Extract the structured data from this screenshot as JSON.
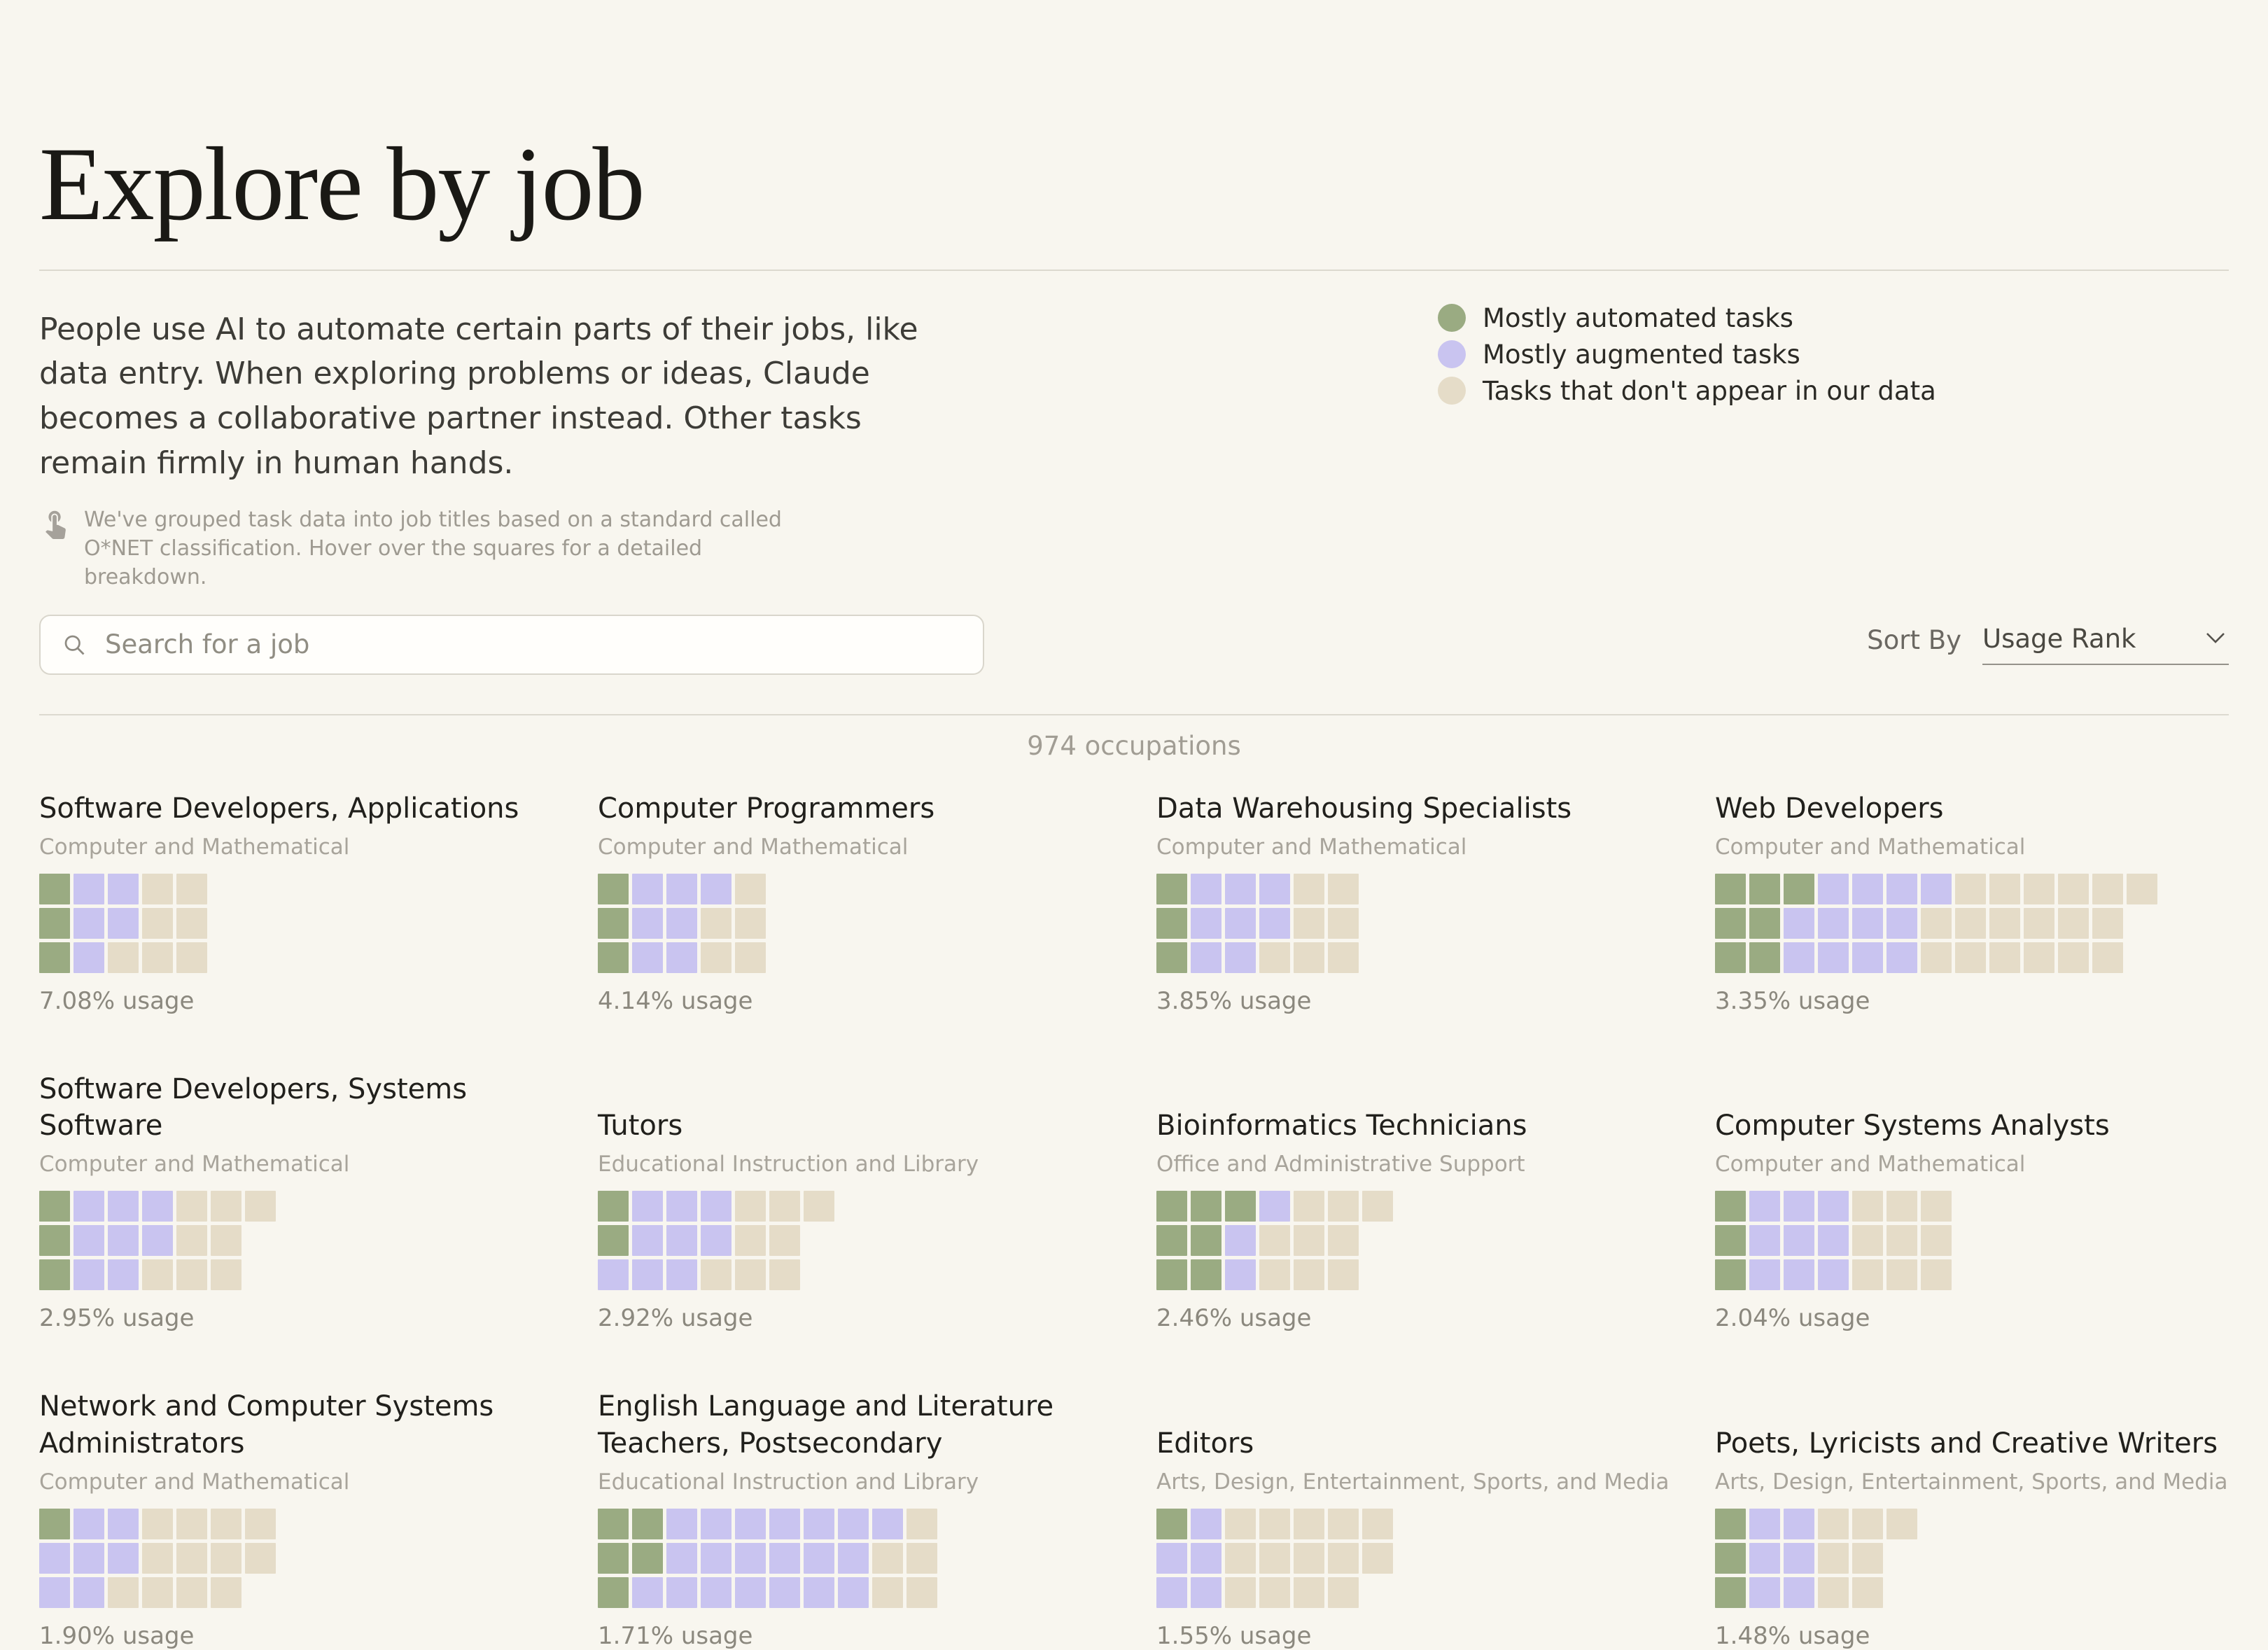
{
  "page": {
    "title": "Explore by job",
    "intro": "People use AI to automate certain parts of their jobs, like data entry. When exploring problems or ideas, Claude becomes a collaborative partner instead. Other tasks remain firmly in human hands.",
    "note": "We've grouped task data into job titles based on a standard called O*NET classification. Hover over the squares for a detailed breakdown.",
    "occupations_count": "974 occupations",
    "search_placeholder": "Search for a job",
    "sort_by_label": "Sort By",
    "sort_by_value": "Usage Rank"
  },
  "legend": {
    "items": [
      {
        "label": "Mostly automated tasks",
        "color_key": "automated"
      },
      {
        "label": "Mostly augmented tasks",
        "color_key": "augmented"
      },
      {
        "label": "Tasks that don't appear in our data",
        "color_key": "not_in_data"
      }
    ]
  },
  "chart_data": {
    "type": "heatmap",
    "subtype": "waffle-grid",
    "rows_per_grid": 3,
    "fill_order": "column-major-top-to-bottom",
    "unit": "occupation tasks",
    "colors": {
      "automated": "#9aab82",
      "augmented": "#c9c4f0",
      "not_in_data": "#e5dcc8",
      "background": "#f8f6ef"
    },
    "jobs": [
      {
        "title": "Software Developers, Applications",
        "category": "Computer and Mathematical",
        "usage": "7.08% usage",
        "tasks_total": 15,
        "tasks_automated": 3,
        "tasks_augmented": 5,
        "tasks_not_in_data": 7
      },
      {
        "title": "Computer Programmers",
        "category": "Computer and Mathematical",
        "usage": "4.14% usage",
        "tasks_total": 15,
        "tasks_automated": 3,
        "tasks_augmented": 7,
        "tasks_not_in_data": 5
      },
      {
        "title": "Data Warehousing Specialists",
        "category": "Computer and Mathematical",
        "usage": "3.85% usage",
        "tasks_total": 18,
        "tasks_automated": 3,
        "tasks_augmented": 8,
        "tasks_not_in_data": 7
      },
      {
        "title": "Web Developers",
        "category": "Computer and Mathematical",
        "usage": "3.35% usage",
        "tasks_total": 37,
        "tasks_automated": 7,
        "tasks_augmented": 12,
        "tasks_not_in_data": 18
      },
      {
        "title": "Software Developers, Systems Software",
        "category": "Computer and Mathematical",
        "usage": "2.95% usage",
        "tasks_total": 19,
        "tasks_automated": 3,
        "tasks_augmented": 8,
        "tasks_not_in_data": 8
      },
      {
        "title": "Tutors",
        "category": "Educational Instruction and Library",
        "usage": "2.92% usage",
        "tasks_total": 19,
        "tasks_automated": 2,
        "tasks_augmented": 9,
        "tasks_not_in_data": 8
      },
      {
        "title": "Bioinformatics Technicians",
        "category": "Office and Administrative Support",
        "usage": "2.46% usage",
        "tasks_total": 19,
        "tasks_automated": 7,
        "tasks_augmented": 3,
        "tasks_not_in_data": 9
      },
      {
        "title": "Computer Systems Analysts",
        "category": "Computer and Mathematical",
        "usage": "2.04% usage",
        "tasks_total": 21,
        "tasks_automated": 3,
        "tasks_augmented": 9,
        "tasks_not_in_data": 9
      },
      {
        "title": "Network and Computer Systems Administrators",
        "category": "Computer and Mathematical",
        "usage": "1.90% usage",
        "tasks_total": 20,
        "tasks_automated": 1,
        "tasks_augmented": 7,
        "tasks_not_in_data": 12
      },
      {
        "title": "English Language and Literature Teachers, Postsecondary",
        "category": "Educational Instruction and Library",
        "usage": "1.71% usage",
        "tasks_total": 30,
        "tasks_automated": 5,
        "tasks_augmented": 20,
        "tasks_not_in_data": 5
      },
      {
        "title": "Editors",
        "category": "Arts, Design, Entertainment, Sports, and Media",
        "usage": "1.55% usage",
        "tasks_total": 20,
        "tasks_automated": 1,
        "tasks_augmented": 5,
        "tasks_not_in_data": 14
      },
      {
        "title": "Poets, Lyricists and Creative Writers",
        "category": "Arts, Design, Entertainment, Sports, and Media",
        "usage": "1.48% usage",
        "tasks_total": 16,
        "tasks_automated": 3,
        "tasks_augmented": 6,
        "tasks_not_in_data": 7
      }
    ]
  }
}
